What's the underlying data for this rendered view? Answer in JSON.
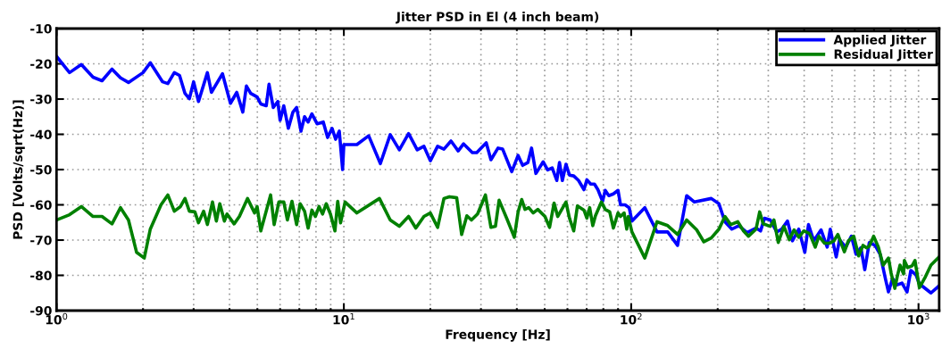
{
  "chart_data": {
    "type": "line",
    "title": "Jitter PSD in El (4 inch beam)",
    "xlabel": "Frequency [Hz]",
    "ylabel": "PSD [Volts/sqrt(Hz)]",
    "log": "x",
    "grid": true,
    "legend": "top right",
    "line_style": "solid",
    "marker": "none",
    "xlim": [
      1,
      1180
    ],
    "xticks": [
      {
        "value": 1,
        "label": "10$^{0}$"
      },
      {
        "value": 10,
        "label": "10$^{1}$"
      },
      {
        "value": 100,
        "label": "10$^{2}$"
      },
      {
        "value": 1000,
        "label": "10$^{3}$"
      }
    ],
    "ylim": [
      -90,
      -10
    ],
    "yticks": [
      -90,
      -80,
      -70,
      -60,
      -50,
      -40,
      -30,
      -20,
      -10
    ],
    "series": [
      {
        "name": "Applied Jitter",
        "color": "#0000ff",
        "x": [
          1,
          1.11,
          1.22,
          1.34,
          1.44,
          1.56,
          1.67,
          1.78,
          2.0,
          2.12,
          2.34,
          2.44,
          2.57,
          2.68,
          2.8,
          2.9,
          3.0,
          3.12,
          3.35,
          3.46,
          3.78,
          4.03,
          4.24,
          4.45,
          4.58,
          4.74,
          4.99,
          5.14,
          5.37,
          5.49,
          5.68,
          5.89,
          6.0,
          6.18,
          6.41,
          6.65,
          6.85,
          7.09,
          7.3,
          7.51,
          7.74,
          8.07,
          8.48,
          8.78,
          9.1,
          9.36,
          9.64,
          9.9,
          10.0,
          11.1,
          12.2,
          13.4,
          14.5,
          15.6,
          16.8,
          18.0,
          19.0,
          20.0,
          21.2,
          22.3,
          23.6,
          25.0,
          26.1,
          28.0,
          29.0,
          31.3,
          32.5,
          34.4,
          35.7,
          38.4,
          40.4,
          41.9,
          43.7,
          45.0,
          46.6,
          49.4,
          51.2,
          53.1,
          55.1,
          56.3,
          57.6,
          59.3,
          61.0,
          63.1,
          65.6,
          68.5,
          70.1,
          72.3,
          74.5,
          76.6,
          79.5,
          81.2,
          83.6,
          86.7,
          90.0,
          91.8,
          95.2,
          98.4,
          100.6,
          111.5,
          123,
          134,
          145,
          156,
          166,
          190,
          202,
          212,
          224,
          237,
          253,
          272,
          282,
          291,
          305,
          321,
          334,
          350,
          364,
          383,
          402,
          414,
          432,
          458,
          481,
          493,
          517,
          531,
          558,
          584,
          606,
          630,
          650,
          674,
          706,
          735,
          768,
          786,
          812,
          843,
          876,
          912,
          940,
          980,
          1007,
          1105,
          1178
        ],
        "values": [
          -17.9,
          -22.5,
          -20.2,
          -23.8,
          -24.8,
          -21.5,
          -24.0,
          -25.3,
          -22.5,
          -19.7,
          -25.1,
          -25.6,
          -22.5,
          -23.3,
          -28.4,
          -29.9,
          -25.1,
          -30.7,
          -22.5,
          -28.1,
          -22.8,
          -31.2,
          -28.1,
          -33.7,
          -26.3,
          -28.4,
          -29.4,
          -31.4,
          -31.9,
          -25.8,
          -32.4,
          -30.7,
          -36.0,
          -31.9,
          -38.3,
          -33.7,
          -32.4,
          -39.1,
          -35.0,
          -36.5,
          -34.2,
          -37.0,
          -36.5,
          -40.9,
          -38.3,
          -41.4,
          -39.1,
          -50.0,
          -42.9,
          -42.9,
          -40.4,
          -48.3,
          -40.1,
          -44.4,
          -39.8,
          -44.4,
          -43.4,
          -47.5,
          -43.4,
          -44.2,
          -41.9,
          -44.7,
          -42.7,
          -45.2,
          -45.2,
          -42.4,
          -47.2,
          -43.9,
          -44.2,
          -50.6,
          -46.0,
          -48.8,
          -48.0,
          -43.9,
          -51.1,
          -47.8,
          -50.1,
          -49.5,
          -53.1,
          -48.0,
          -53.1,
          -48.5,
          -51.6,
          -51.8,
          -53.1,
          -55.7,
          -52.9,
          -54.1,
          -54.1,
          -55.7,
          -59.0,
          -55.9,
          -57.4,
          -56.9,
          -55.9,
          -60.0,
          -60.0,
          -60.8,
          -64.6,
          -60.8,
          -67.7,
          -67.7,
          -71.5,
          -57.4,
          -59.2,
          -58.2,
          -59.7,
          -64.8,
          -66.9,
          -65.9,
          -67.9,
          -66.6,
          -67.4,
          -63.8,
          -64.3,
          -67.7,
          -66.9,
          -64.6,
          -70.2,
          -66.9,
          -73.5,
          -65.6,
          -70.2,
          -67.1,
          -72.0,
          -66.9,
          -74.8,
          -69.9,
          -72.0,
          -68.9,
          -74.0,
          -72.2,
          -78.4,
          -70.7,
          -71.5,
          -74.0,
          -81.2,
          -84.7,
          -80.9,
          -82.7,
          -82.2,
          -84.7,
          -78.6,
          -79.9,
          -82.4,
          -85.0,
          -83.0
        ]
      },
      {
        "name": "Residual Jitter",
        "color": "#008000",
        "x": [
          1,
          1.11,
          1.22,
          1.34,
          1.44,
          1.56,
          1.67,
          1.78,
          1.9,
          2.02,
          2.12,
          2.31,
          2.44,
          2.57,
          2.7,
          2.8,
          2.9,
          3.03,
          3.12,
          3.25,
          3.35,
          3.49,
          3.6,
          3.7,
          3.84,
          3.92,
          4.15,
          4.33,
          4.62,
          4.89,
          4.99,
          5.14,
          5.56,
          5.72,
          5.94,
          6.18,
          6.36,
          6.6,
          6.85,
          7.04,
          7.3,
          7.51,
          7.74,
          7.96,
          8.2,
          8.43,
          8.68,
          8.98,
          9.31,
          9.52,
          9.74,
          10.1,
          11.1,
          13.3,
          14.5,
          15.6,
          16.8,
          17.8,
          19.0,
          20.0,
          21.2,
          22.3,
          23.3,
          24.7,
          25.7,
          26.8,
          27.8,
          29.2,
          31.1,
          32.5,
          33.7,
          34.7,
          37.0,
          39.2,
          40.4,
          41.6,
          42.7,
          44.0,
          45.6,
          47.3,
          50.1,
          52.0,
          53.9,
          55.5,
          59.3,
          61.0,
          63.1,
          65.0,
          68.5,
          70.1,
          71.7,
          73.5,
          75.1,
          78.8,
          81.2,
          84.2,
          86.7,
          90.0,
          91.8,
          94.5,
          96.5,
          97.7,
          100.6,
          111.5,
          123,
          134,
          145,
          156,
          169,
          179,
          190,
          202,
          212,
          222,
          235,
          246,
          256,
          272,
          280,
          288,
          305,
          314,
          325,
          340,
          355,
          369,
          383,
          399,
          418,
          437,
          450,
          471,
          489,
          508,
          524,
          552,
          570,
          595,
          619,
          641,
          660,
          674,
          698,
          725,
          753,
          786,
          803,
          827,
          843,
          862,
          887,
          893,
          916,
          950,
          972,
          1007,
          1057,
          1105,
          1178
        ],
        "values": [
          -64.3,
          -62.8,
          -60.5,
          -63.3,
          -63.3,
          -65.4,
          -60.8,
          -64.3,
          -73.5,
          -75.1,
          -66.9,
          -60.0,
          -57.2,
          -61.8,
          -60.5,
          -58.2,
          -61.8,
          -62.0,
          -65.1,
          -61.8,
          -65.6,
          -59.2,
          -64.6,
          -59.7,
          -64.6,
          -62.6,
          -65.4,
          -63.3,
          -58.2,
          -62.3,
          -60.5,
          -67.4,
          -57.2,
          -65.6,
          -59.2,
          -59.2,
          -64.3,
          -59.0,
          -65.6,
          -59.7,
          -61.8,
          -66.6,
          -61.5,
          -63.3,
          -60.5,
          -62.6,
          -59.7,
          -62.6,
          -67.4,
          -59.0,
          -65.1,
          -59.2,
          -62.3,
          -58.2,
          -64.3,
          -66.1,
          -63.3,
          -66.6,
          -63.3,
          -62.3,
          -66.4,
          -58.2,
          -57.7,
          -58.0,
          -68.4,
          -63.1,
          -64.3,
          -62.6,
          -57.2,
          -66.4,
          -66.1,
          -58.7,
          -64.1,
          -69.2,
          -62.0,
          -58.5,
          -61.3,
          -60.8,
          -62.3,
          -61.3,
          -63.3,
          -66.4,
          -59.5,
          -63.3,
          -59.2,
          -63.8,
          -67.4,
          -60.3,
          -61.5,
          -63.8,
          -60.8,
          -65.9,
          -63.1,
          -59.2,
          -61.3,
          -62.0,
          -66.6,
          -62.3,
          -63.3,
          -62.3,
          -66.9,
          -63.3,
          -67.7,
          -75.1,
          -64.8,
          -65.9,
          -68.4,
          -64.3,
          -67.1,
          -70.5,
          -69.4,
          -66.9,
          -63.3,
          -65.6,
          -64.8,
          -67.4,
          -68.9,
          -66.9,
          -62.0,
          -65.4,
          -66.1,
          -64.3,
          -70.7,
          -66.1,
          -69.9,
          -67.1,
          -69.2,
          -67.4,
          -68.2,
          -72.0,
          -68.9,
          -70.9,
          -70.9,
          -70.2,
          -68.4,
          -73.3,
          -70.2,
          -68.9,
          -74.5,
          -71.5,
          -72.2,
          -71.7,
          -68.9,
          -72.0,
          -77.1,
          -75.1,
          -79.4,
          -83.7,
          -80.4,
          -77.1,
          -79.6,
          -75.8,
          -77.8,
          -77.3,
          -75.8,
          -83.5,
          -80.4,
          -77.1,
          -74.8
        ]
      }
    ]
  }
}
